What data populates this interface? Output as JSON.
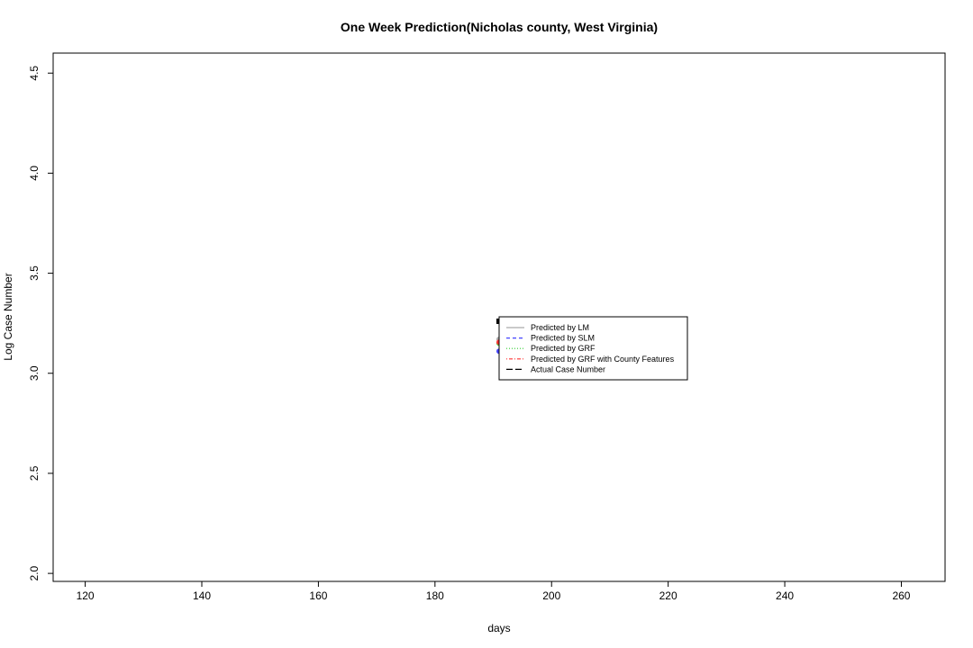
{
  "chart_data": {
    "type": "line",
    "title": "One Week Prediction(Nicholas county, West Virginia)",
    "xlabel": "days",
    "ylabel": "Log Case Number",
    "xlim": [
      114.5,
      267.5
    ],
    "ylim": [
      1.96,
      4.6
    ],
    "xticks": [
      120,
      140,
      160,
      180,
      200,
      220,
      240,
      260
    ],
    "yticks": [
      2.0,
      2.5,
      3.0,
      3.5,
      4.0,
      4.5
    ],
    "xtick_labels": [
      "120",
      "140",
      "160",
      "180",
      "200",
      "220",
      "240",
      "260"
    ],
    "ytick_labels": [
      "2.0",
      "2.5",
      "3.0",
      "3.5",
      "4.0",
      "4.5"
    ],
    "grid": false,
    "legend_position": "center",
    "series": [
      {
        "name": "Predicted by LM",
        "color": "#aaaaaa",
        "dash": "solid",
        "marker": "circle",
        "x": [
          191
        ],
        "y": [
          3.17
        ]
      },
      {
        "name": "Predicted by SLM",
        "color": "#4444ff",
        "dash": "dashed",
        "marker": "circle",
        "x": [
          191
        ],
        "y": [
          3.11
        ]
      },
      {
        "name": "Predicted by GRF",
        "color": "#33cc33",
        "dash": "dotted",
        "marker": "circle",
        "x": [
          191
        ],
        "y": [
          3.15
        ]
      },
      {
        "name": "Predicted by GRF with County Features",
        "color": "#ff3333",
        "dash": "dotdash",
        "marker": "circle",
        "x": [
          191
        ],
        "y": [
          3.155
        ]
      },
      {
        "name": "Actual Case Number",
        "color": "#000000",
        "dash": "longdash",
        "marker": "square",
        "x": [
          191
        ],
        "y": [
          3.26
        ]
      }
    ]
  }
}
